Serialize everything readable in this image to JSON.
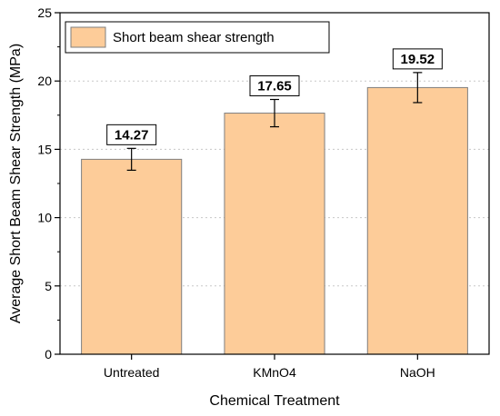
{
  "chart_data": {
    "type": "bar",
    "categories": [
      "Untreated",
      "KMnO4",
      "NaOH"
    ],
    "series": [
      {
        "name": "Short beam shear strength",
        "values": [
          14.27,
          17.65,
          19.52
        ],
        "errors": [
          0.8,
          1.0,
          1.1
        ],
        "color": "#fdcc99"
      }
    ],
    "value_labels": [
      "14.27",
      "17.65",
      "19.52"
    ],
    "xlabel": "Chemical Treatment",
    "ylabel": "Average Short Beam Shear Strength (MPa)",
    "ylim": [
      0,
      25
    ],
    "yticks": [
      0,
      5,
      10,
      15,
      20,
      25
    ],
    "grid": true,
    "legend": "top-left",
    "bar_edge_color": "#7f7f7f"
  }
}
